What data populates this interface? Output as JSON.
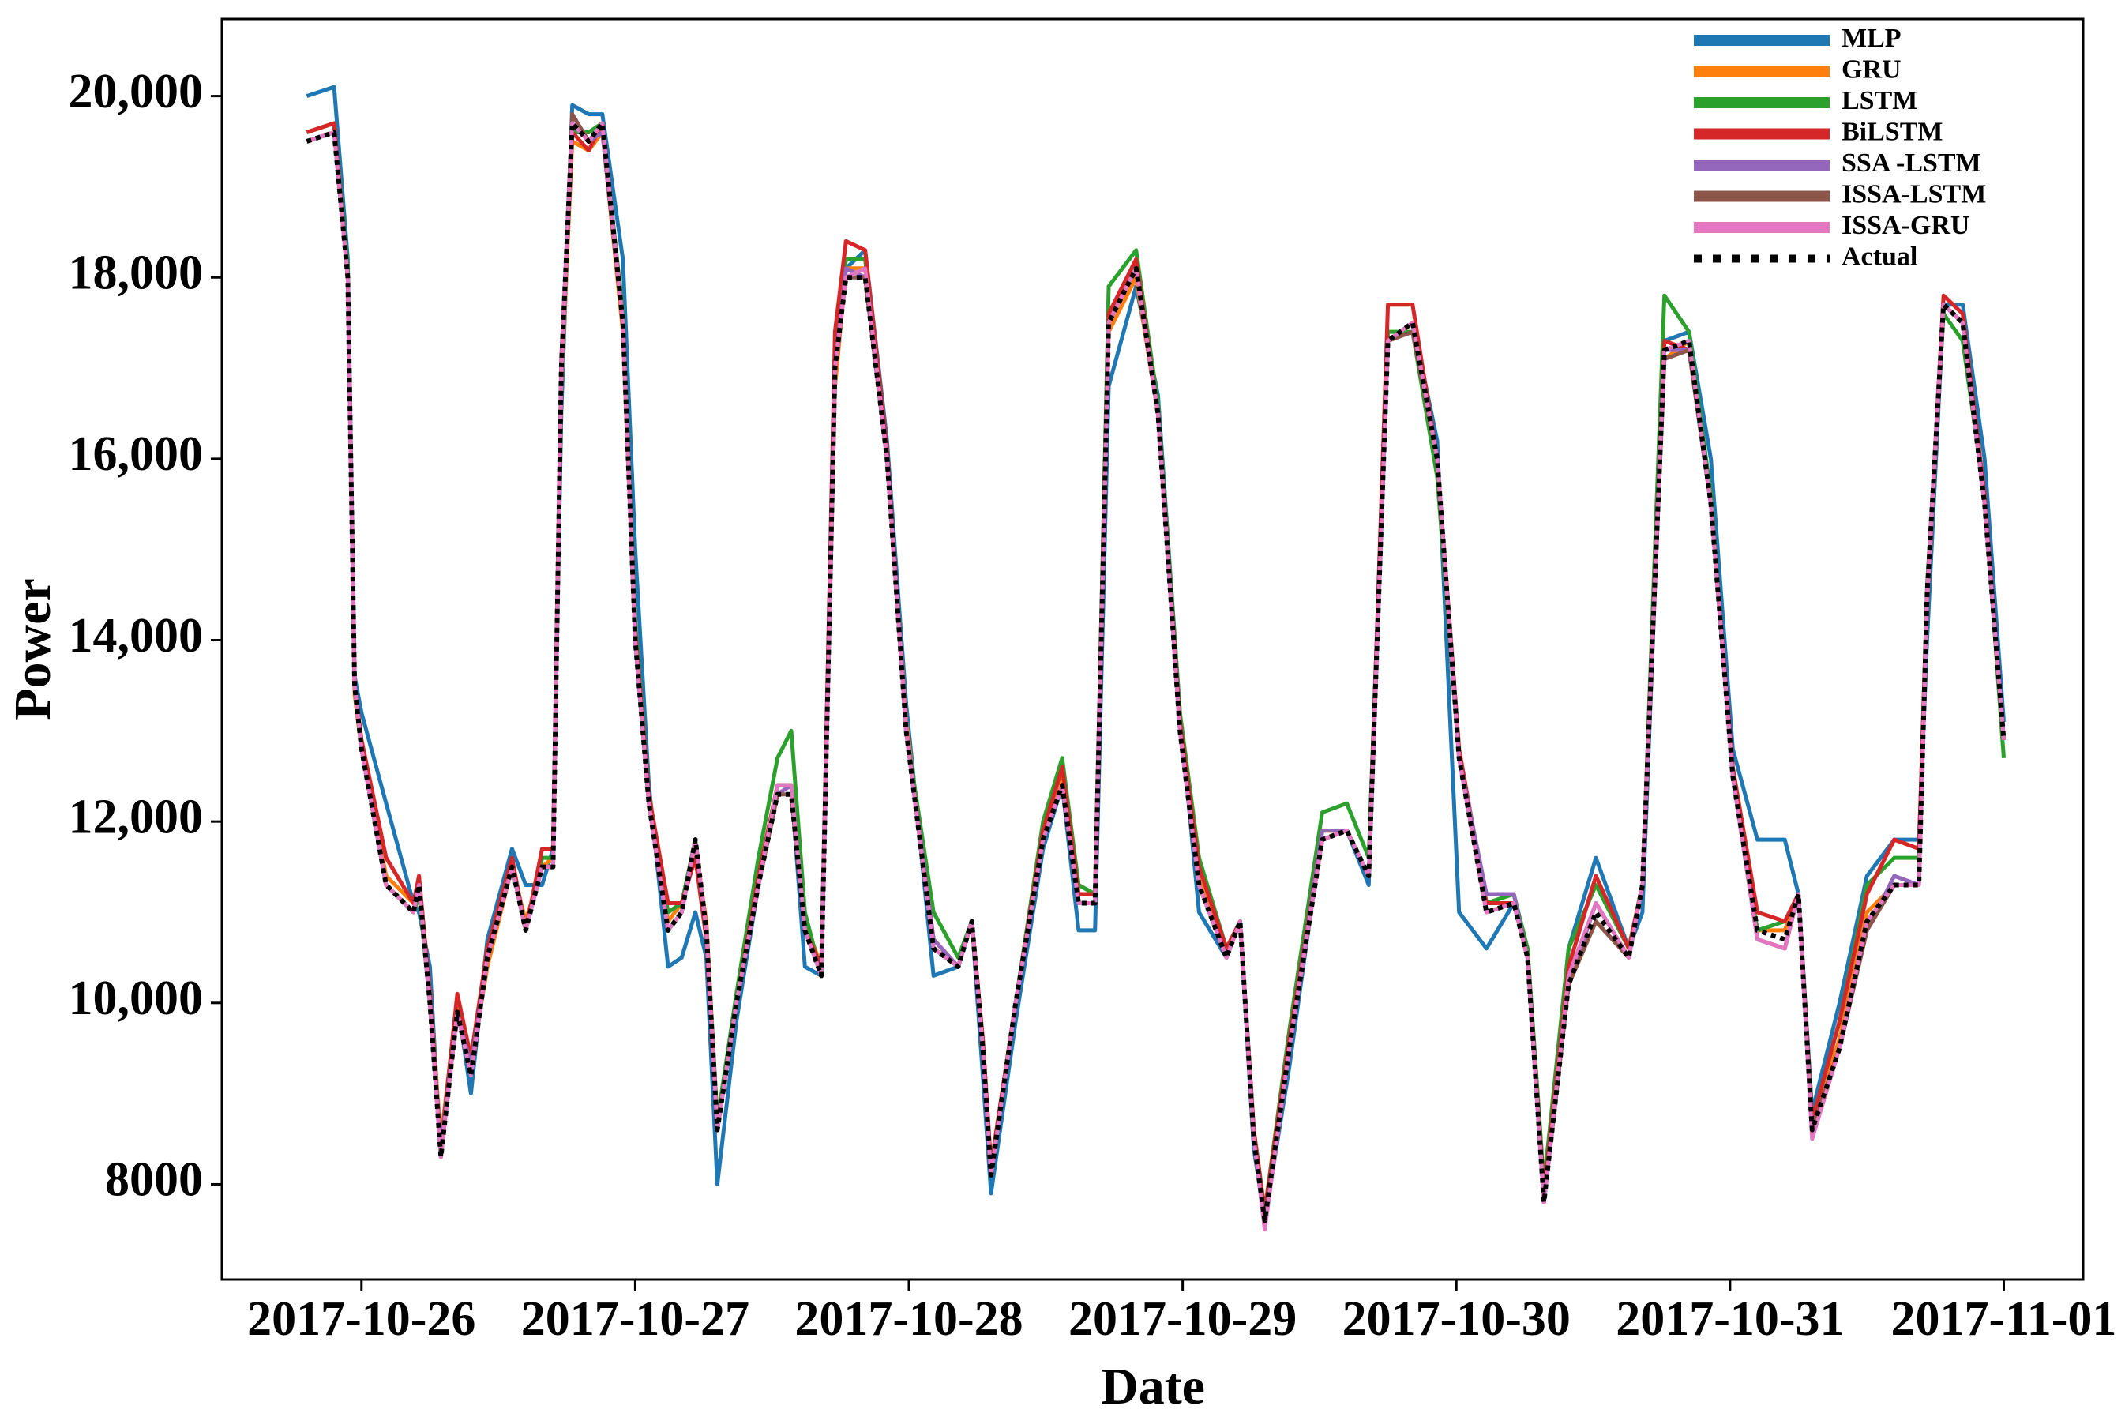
{
  "chart_data": {
    "type": "line",
    "xlabel": "Date",
    "ylabel": "Power",
    "xlim": [
      -0.51,
      6.29
    ],
    "xticks": [
      {
        "value": 0,
        "label": "2017-10-26"
      },
      {
        "value": 1,
        "label": "2017-10-27"
      },
      {
        "value": 2,
        "label": "2017-10-28"
      },
      {
        "value": 3,
        "label": "2017-10-29"
      },
      {
        "value": 4,
        "label": "2017-10-30"
      },
      {
        "value": 5,
        "label": "2017-10-31"
      },
      {
        "value": 6,
        "label": "2017-11-01"
      }
    ],
    "ylim": [
      6950,
      20850
    ],
    "yticks": [
      8000,
      {
        "value": 10000,
        "label": "10,000"
      },
      {
        "value": 12000,
        "label": "12,000"
      },
      {
        "value": 14000,
        "label": "14,000"
      },
      {
        "value": 16000,
        "label": "16,000"
      },
      {
        "value": 18000,
        "label": "18,000"
      },
      {
        "value": 20000,
        "label": "20,000"
      }
    ],
    "legend": "upper right",
    "grid": false,
    "x": [
      -0.2,
      -0.1,
      -0.05,
      -0.025,
      0,
      0.09,
      0.19,
      0.21,
      0.25,
      0.29,
      0.35,
      0.4,
      0.46,
      0.55,
      0.6,
      0.66,
      0.7,
      0.73,
      0.77,
      0.83,
      0.88,
      0.955,
      1.0,
      1.05,
      1.12,
      1.17,
      1.22,
      1.26,
      1.3,
      1.37,
      1.45,
      1.52,
      1.57,
      1.62,
      1.68,
      1.73,
      1.77,
      1.84,
      1.92,
      1.99,
      2.09,
      2.18,
      2.23,
      2.27,
      2.3,
      2.39,
      2.49,
      2.56,
      2.62,
      2.68,
      2.73,
      2.83,
      2.91,
      2.99,
      3.06,
      3.16,
      3.21,
      3.26,
      3.3,
      3.39,
      3.51,
      3.6,
      3.68,
      3.75,
      3.84,
      3.93,
      4.01,
      4.11,
      4.21,
      4.26,
      4.32,
      4.41,
      4.51,
      4.63,
      4.68,
      4.76,
      4.85,
      4.93,
      5.01,
      5.1,
      5.2,
      5.25,
      5.3,
      5.4,
      5.5,
      5.6,
      5.69,
      5.72,
      5.78,
      5.85,
      5.93,
      6.0
    ],
    "series": [
      {
        "name": "MLP",
        "color": "#1f77b4",
        "values": [
          20000,
          20100,
          18200,
          13600,
          13200,
          12200,
          11100,
          11000,
          10400,
          8300,
          10000,
          9000,
          10700,
          11700,
          11300,
          11300,
          11700,
          16500,
          19900,
          19800,
          19800,
          18200,
          15000,
          12400,
          10400,
          10500,
          11000,
          10500,
          8000,
          9800,
          11300,
          12400,
          12400,
          10400,
          10300,
          16800,
          18100,
          18300,
          16200,
          13300,
          10300,
          10400,
          10900,
          9200,
          7900,
          9800,
          11700,
          12400,
          10800,
          10800,
          16800,
          17900,
          16700,
          13200,
          11000,
          10500,
          10900,
          8400,
          7600,
          9300,
          11900,
          11900,
          11300,
          17300,
          17500,
          16200,
          11000,
          10600,
          11100,
          10500,
          7800,
          10600,
          11600,
          10600,
          11000,
          17300,
          17400,
          16000,
          12800,
          11800,
          11800,
          11200,
          8800,
          10000,
          11400,
          11800,
          11800,
          14000,
          17700,
          17700,
          16000,
          13100
        ]
      },
      {
        "name": "GRU",
        "color": "#ff7f0e",
        "values": [
          19600,
          19700,
          18000,
          13400,
          12800,
          11400,
          11100,
          11300,
          10100,
          8500,
          10000,
          9300,
          10400,
          11500,
          10900,
          11500,
          11600,
          16800,
          19500,
          19400,
          19600,
          17400,
          14000,
          12200,
          10900,
          11100,
          11700,
          10900,
          8700,
          10000,
          11300,
          12400,
          12400,
          10900,
          10400,
          16800,
          18100,
          18100,
          16000,
          13100,
          10700,
          10400,
          10900,
          9600,
          8200,
          10000,
          11800,
          12500,
          11200,
          11200,
          17400,
          18000,
          16500,
          13100,
          11400,
          10500,
          10900,
          8600,
          7700,
          9600,
          11900,
          11900,
          11400,
          17300,
          17500,
          16000,
          12800,
          11000,
          11100,
          10600,
          7900,
          10200,
          10900,
          10500,
          11300,
          17100,
          17300,
          15500,
          12500,
          10800,
          10800,
          11200,
          8700,
          9600,
          11000,
          11300,
          11300,
          14400,
          17700,
          17500,
          15500,
          12900
        ]
      },
      {
        "name": "LSTM",
        "color": "#2ca02c",
        "values": [
          19600,
          19700,
          18100,
          13500,
          12800,
          11300,
          11000,
          11200,
          10000,
          8400,
          9900,
          9300,
          10600,
          11500,
          10800,
          11600,
          11600,
          17000,
          19600,
          19600,
          19700,
          17600,
          14200,
          12300,
          11000,
          11100,
          11800,
          10800,
          8700,
          10100,
          11600,
          12700,
          13000,
          11000,
          10300,
          17200,
          18200,
          18200,
          16000,
          13000,
          11000,
          10500,
          10900,
          9500,
          8200,
          10000,
          12000,
          12700,
          11300,
          11200,
          17900,
          18300,
          16600,
          13200,
          11600,
          10600,
          10900,
          8600,
          7700,
          9700,
          12100,
          12200,
          11600,
          17400,
          17400,
          15800,
          12700,
          11100,
          11200,
          10600,
          8000,
          10600,
          11300,
          10600,
          11300,
          17800,
          17400,
          15600,
          12500,
          10800,
          10900,
          11200,
          8700,
          9800,
          11300,
          11600,
          11600,
          14600,
          17600,
          17300,
          15600,
          12700
        ]
      },
      {
        "name": "BiLSTM",
        "color": "#d62728",
        "values": [
          19600,
          19700,
          18000,
          13500,
          12900,
          11600,
          11100,
          11400,
          10100,
          8400,
          10100,
          9400,
          10600,
          11600,
          10800,
          11700,
          11700,
          17100,
          19600,
          19400,
          19700,
          17500,
          14100,
          12300,
          11100,
          11100,
          11600,
          10700,
          8600,
          10000,
          11400,
          12400,
          12400,
          10800,
          10400,
          17400,
          18400,
          18300,
          16100,
          13000,
          10700,
          10400,
          10900,
          9600,
          8200,
          10000,
          11900,
          12600,
          11200,
          11200,
          17600,
          18200,
          16500,
          13100,
          11500,
          10600,
          10900,
          8600,
          7700,
          9600,
          11900,
          11900,
          11400,
          17700,
          17700,
          16000,
          12800,
          11100,
          11100,
          10500,
          7900,
          10400,
          11400,
          10600,
          11300,
          17300,
          17200,
          15500,
          12600,
          11000,
          10900,
          11200,
          8700,
          9800,
          11200,
          11800,
          11700,
          14500,
          17800,
          17600,
          15600,
          12900
        ]
      },
      {
        "name": "SSA -LSTM",
        "color": "#9467bd",
        "values": [
          19500,
          19600,
          18000,
          13500,
          12800,
          11300,
          11000,
          11300,
          10000,
          8400,
          9900,
          9300,
          10500,
          11500,
          10800,
          11500,
          11500,
          16900,
          19700,
          19500,
          19600,
          17500,
          14000,
          12200,
          10800,
          11000,
          11800,
          10800,
          8600,
          10000,
          11300,
          12300,
          12400,
          10800,
          10300,
          17000,
          18100,
          18000,
          16000,
          13000,
          10700,
          10400,
          10900,
          9500,
          8100,
          10000,
          11800,
          12400,
          11100,
          11100,
          17500,
          18100,
          16500,
          13000,
          11300,
          10500,
          10900,
          8500,
          7600,
          9500,
          11900,
          11900,
          11400,
          17300,
          17500,
          16000,
          12700,
          11200,
          11200,
          10500,
          7800,
          10200,
          11100,
          10500,
          11300,
          17200,
          17200,
          15500,
          12500,
          10700,
          10600,
          11200,
          8600,
          9500,
          10800,
          11400,
          11300,
          14500,
          17700,
          17500,
          15500,
          12900
        ]
      },
      {
        "name": "ISSA-LSTM",
        "color": "#8c564b",
        "values": [
          19500,
          19600,
          18000,
          13500,
          12800,
          11300,
          11000,
          11300,
          10000,
          8300,
          9900,
          9200,
          10500,
          11500,
          10800,
          11500,
          11500,
          17000,
          19800,
          19500,
          19700,
          17500,
          14000,
          12200,
          10800,
          11000,
          11800,
          10800,
          8600,
          10000,
          11300,
          12300,
          12300,
          10800,
          10300,
          17000,
          18000,
          18000,
          16000,
          13000,
          10600,
          10400,
          10900,
          9500,
          8100,
          10000,
          11800,
          12400,
          11100,
          11100,
          17500,
          18100,
          16500,
          13000,
          11300,
          10500,
          10900,
          8500,
          7600,
          9500,
          11800,
          11900,
          11400,
          17300,
          17400,
          16000,
          12700,
          11000,
          11100,
          10500,
          7800,
          10200,
          10900,
          10500,
          11300,
          17100,
          17200,
          15500,
          12500,
          10700,
          10600,
          11200,
          8600,
          9500,
          10800,
          11300,
          11300,
          14500,
          17700,
          17500,
          15500,
          12900
        ]
      },
      {
        "name": "ISSA-GRU",
        "color": "#e377c2",
        "values": [
          19500,
          19600,
          18000,
          13500,
          12800,
          11300,
          11000,
          11300,
          10000,
          8300,
          9900,
          9200,
          10500,
          11500,
          10800,
          11500,
          11500,
          17000,
          19700,
          19500,
          19700,
          17500,
          14000,
          12200,
          10800,
          11000,
          11800,
          10800,
          8600,
          10000,
          11300,
          12400,
          12400,
          10800,
          10300,
          17000,
          18000,
          18100,
          16000,
          13000,
          10600,
          10400,
          10900,
          9500,
          8100,
          10000,
          11800,
          12400,
          11100,
          11100,
          17500,
          18100,
          16500,
          13000,
          11300,
          10500,
          10900,
          8500,
          7500,
          9500,
          11800,
          11900,
          11400,
          17300,
          17500,
          16000,
          12700,
          11000,
          11100,
          10500,
          7800,
          10300,
          11100,
          10500,
          11300,
          17200,
          17300,
          15500,
          12500,
          10700,
          10600,
          11200,
          8500,
          9500,
          10900,
          11300,
          11300,
          14500,
          17700,
          17500,
          15500,
          12900
        ]
      },
      {
        "name": "Actual",
        "color": "#000000",
        "values": [
          19500,
          19600,
          18000,
          13500,
          12800,
          11300,
          11000,
          11300,
          10000,
          8300,
          9900,
          9200,
          10500,
          11500,
          10800,
          11500,
          11500,
          17000,
          19700,
          19500,
          19700,
          17500,
          14000,
          12200,
          10800,
          11000,
          11800,
          10800,
          8600,
          10000,
          11300,
          12300,
          12300,
          10800,
          10300,
          17000,
          18000,
          18000,
          16000,
          13000,
          10600,
          10400,
          10900,
          9500,
          8100,
          10000,
          11800,
          12400,
          11100,
          11100,
          17500,
          18100,
          16500,
          13000,
          11300,
          10500,
          10900,
          8500,
          7600,
          9500,
          11800,
          11900,
          11400,
          17300,
          17500,
          16000,
          12700,
          11000,
          11100,
          10500,
          7800,
          10200,
          11000,
          10500,
          11300,
          17200,
          17300,
          15500,
          12500,
          10800,
          10700,
          11200,
          8600,
          9500,
          10900,
          11300,
          11300,
          14500,
          17700,
          17500,
          15500,
          12900
        ]
      }
    ]
  }
}
